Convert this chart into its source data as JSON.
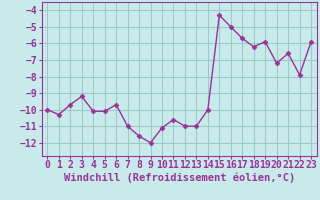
{
  "x": [
    0,
    1,
    2,
    3,
    4,
    5,
    6,
    7,
    8,
    9,
    10,
    11,
    12,
    13,
    14,
    15,
    16,
    17,
    18,
    19,
    20,
    21,
    22,
    23
  ],
  "y": [
    -10.0,
    -10.3,
    -9.7,
    -9.2,
    -10.1,
    -10.1,
    -9.7,
    -11.0,
    -11.6,
    -12.0,
    -11.1,
    -10.6,
    -11.0,
    -11.0,
    -10.0,
    -4.3,
    -5.0,
    -5.7,
    -6.2,
    -5.9,
    -7.2,
    -6.6,
    -7.9,
    -5.9
  ],
  "line_color": "#993399",
  "marker": "D",
  "marker_size": 2.5,
  "bg_color": "#c8eaea",
  "grid_color": "#a0c8c8",
  "text_color": "#993399",
  "xlabel": "Windchill (Refroidissement éolien,°C)",
  "xlabel_fontsize": 7.5,
  "tick_fontsize": 7,
  "ylim": [
    -12.8,
    -3.5
  ],
  "xlim": [
    -0.5,
    23.5
  ],
  "yticks": [
    -12,
    -11,
    -10,
    -9,
    -8,
    -7,
    -6,
    -5,
    -4
  ],
  "xticks": [
    0,
    1,
    2,
    3,
    4,
    5,
    6,
    7,
    8,
    9,
    10,
    11,
    12,
    13,
    14,
    15,
    16,
    17,
    18,
    19,
    20,
    21,
    22,
    23
  ],
  "spine_color": "#993399",
  "linewidth": 1.0
}
